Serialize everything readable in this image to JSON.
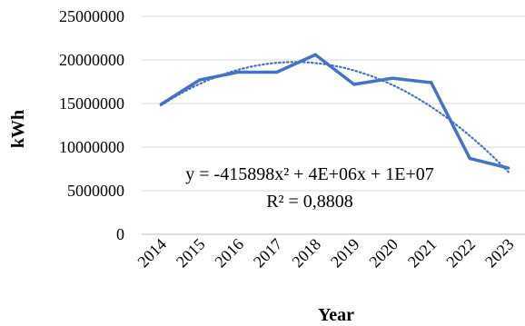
{
  "chart_data": {
    "type": "line",
    "title": "",
    "xlabel": "Year",
    "ylabel": "kWh",
    "x": [
      "2014",
      "2015",
      "2016",
      "2017",
      "2018",
      "2019",
      "2020",
      "2021",
      "2022",
      "2023"
    ],
    "series": [
      {
        "values": [
          14900000,
          17700000,
          18600000,
          18600000,
          20600000,
          17200000,
          17900000,
          17400000,
          8700000,
          7600000
        ],
        "color": "#4472C4"
      }
    ],
    "trendline": {
      "type": "polynomial-2",
      "equation": "y = -415898x² + 4E+06x + 1E+07",
      "r_squared": "R² = 0,8808",
      "style": "dotted",
      "color": "#4472C4"
    },
    "ylim": [
      0,
      25000000
    ],
    "yticks": [
      "0",
      "5000000",
      "10000000",
      "15000000",
      "20000000",
      "25000000"
    ],
    "grid": "horizontal",
    "legend": "none"
  }
}
